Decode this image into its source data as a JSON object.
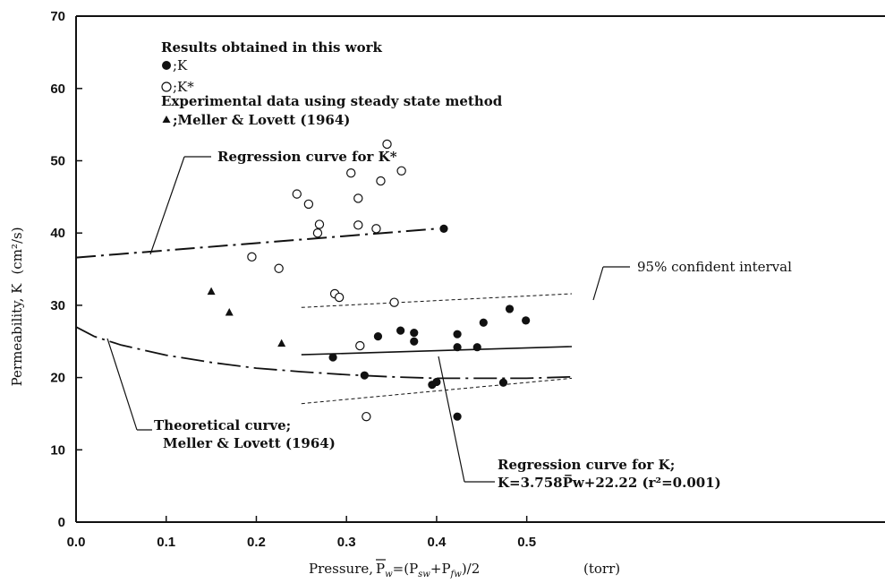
{
  "chart_data": {
    "type": "scatter",
    "xlabel_main": "Pressure,",
    "xlabel_formula": "P̅w=(Psw+Pfw)/2",
    "xlabel_unit": "(torr)",
    "ylabel": "Permeability, K",
    "ylabel_unit": "(cm²/s)",
    "xlim": [
      0.0,
      0.55
    ],
    "ylim": [
      0,
      70
    ],
    "xticks": [
      "0.0",
      "0.1",
      "0.2",
      "0.3",
      "0.4",
      "0.5"
    ],
    "yticks": [
      "0",
      "10",
      "20",
      "30",
      "40",
      "50",
      "60",
      "70"
    ],
    "legend": {
      "title": "Results obtained in this work",
      "k_label": ";K",
      "kstar_label": ";K*",
      "exp_title": "Experimental data using steady state method",
      "exp_label": ";Meller & Lovett (1964)"
    },
    "series": [
      {
        "name": "K",
        "marker": "filled-circle",
        "points": [
          [
            0.285,
            22.8
          ],
          [
            0.32,
            20.3
          ],
          [
            0.335,
            25.7
          ],
          [
            0.36,
            26.5
          ],
          [
            0.375,
            26.2
          ],
          [
            0.375,
            25.0
          ],
          [
            0.395,
            19.0
          ],
          [
            0.4,
            19.4
          ],
          [
            0.408,
            40.6
          ],
          [
            0.423,
            26.0
          ],
          [
            0.423,
            24.2
          ],
          [
            0.423,
            14.6
          ],
          [
            0.445,
            24.2
          ],
          [
            0.452,
            27.6
          ],
          [
            0.474,
            19.3
          ],
          [
            0.481,
            29.5
          ],
          [
            0.499,
            27.9
          ]
        ]
      },
      {
        "name": "K*",
        "marker": "open-circle",
        "points": [
          [
            0.195,
            36.7
          ],
          [
            0.225,
            35.1
          ],
          [
            0.245,
            45.4
          ],
          [
            0.258,
            44.0
          ],
          [
            0.268,
            40.0
          ],
          [
            0.27,
            41.2
          ],
          [
            0.287,
            31.6
          ],
          [
            0.292,
            31.1
          ],
          [
            0.305,
            48.3
          ],
          [
            0.313,
            41.1
          ],
          [
            0.313,
            44.8
          ],
          [
            0.315,
            24.4
          ],
          [
            0.322,
            14.6
          ],
          [
            0.333,
            40.6
          ],
          [
            0.338,
            47.2
          ],
          [
            0.345,
            52.3
          ],
          [
            0.353,
            30.4
          ],
          [
            0.361,
            48.6
          ]
        ]
      },
      {
        "name": "Meller & Lovett (1964)",
        "marker": "triangle",
        "points": [
          [
            0.15,
            31.9
          ],
          [
            0.17,
            29.0
          ],
          [
            0.228,
            24.7
          ]
        ]
      }
    ],
    "regression_k": {
      "label": "Regression curve for K;",
      "equation": "K=3.758P̅w+22.22 (r²=0.001)",
      "slope": 3.758,
      "intercept": 22.22,
      "x_range": [
        0.25,
        0.55
      ]
    },
    "confidence_interval": {
      "label": "95% confident interval",
      "upper": [
        [
          0.25,
          29.7
        ],
        [
          0.55,
          31.6
        ]
      ],
      "lower": [
        [
          0.25,
          16.4
        ],
        [
          0.55,
          19.9
        ]
      ]
    },
    "regression_kstar": {
      "label": "Regression curve for K*",
      "points": [
        [
          0.0,
          36.6
        ],
        [
          0.4,
          40.6
        ]
      ]
    },
    "theoretical": {
      "label": "Theoretical curve;",
      "label2": "Meller & Lovett (1964)",
      "points": [
        [
          0.0,
          27.0
        ],
        [
          0.02,
          25.7
        ],
        [
          0.05,
          24.5
        ],
        [
          0.1,
          23.1
        ],
        [
          0.15,
          22.1
        ],
        [
          0.2,
          21.3
        ],
        [
          0.25,
          20.8
        ],
        [
          0.3,
          20.4
        ],
        [
          0.35,
          20.1
        ],
        [
          0.4,
          19.9
        ],
        [
          0.45,
          19.9
        ],
        [
          0.5,
          19.9
        ],
        [
          0.55,
          20.1
        ]
      ]
    }
  }
}
